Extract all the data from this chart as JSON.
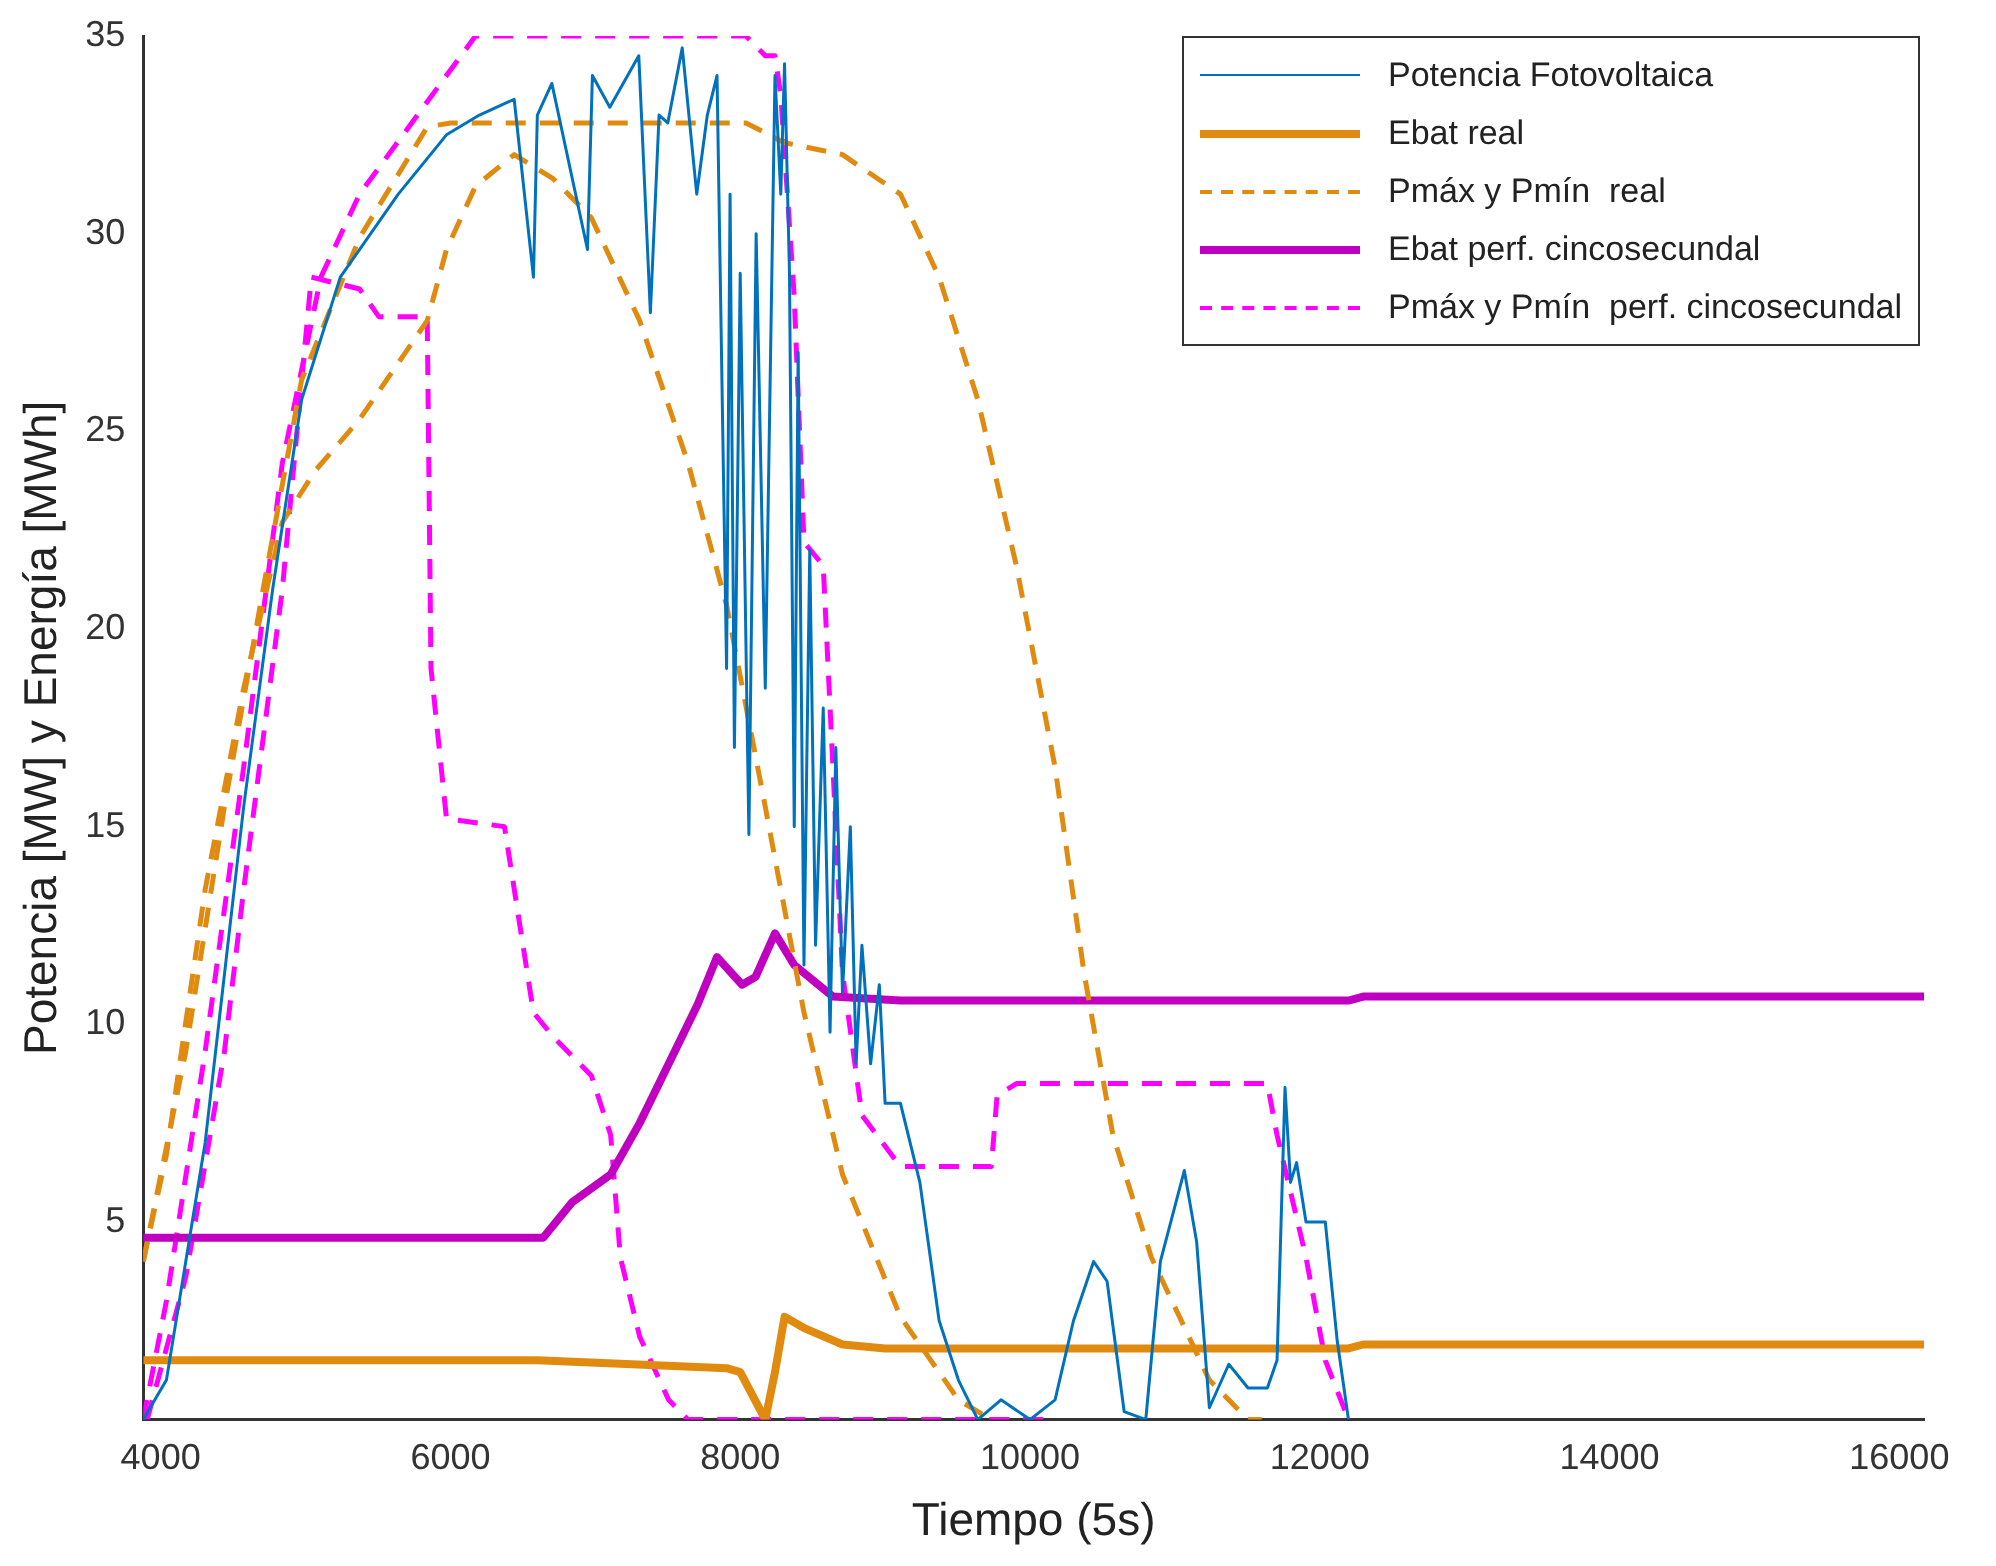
{
  "chart_data": {
    "type": "line",
    "xlabel": "Tiempo (5s)",
    "ylabel": "Potencia [MW] y Energía [MWh]",
    "xlim": [
      3880,
      16170
    ],
    "ylim": [
      0,
      35
    ],
    "xticks": [
      4000,
      6000,
      8000,
      10000,
      12000,
      14000,
      16000
    ],
    "yticks": [
      5,
      10,
      15,
      20,
      25,
      30,
      35
    ],
    "grid": false,
    "legend": "top right",
    "marker": "none",
    "series": [
      {
        "name": "Potencia Fotovoltaica",
        "color": "#0072bd",
        "line_style": "solid",
        "x": [
          3880,
          4040,
          4307,
          4573,
          4773,
          4973,
          5240,
          5640,
          5973,
          6200,
          6440,
          6573,
          6600,
          6700,
          6946,
          6980,
          7100,
          7300,
          7380,
          7440,
          7500,
          7600,
          7700,
          7773,
          7840,
          7906,
          7930,
          7960,
          8000,
          8060,
          8110,
          8173,
          8240,
          8280,
          8306,
          8340,
          8373,
          8400,
          8440,
          8480,
          8520,
          8573,
          8620,
          8660,
          8706,
          8760,
          8800,
          8840,
          8900,
          8960,
          9000,
          9106,
          9240,
          9373,
          9506,
          9640,
          9800,
          10000,
          10173,
          10300,
          10439,
          10532,
          10650,
          10799,
          10900,
          11065,
          11150,
          11238,
          11372,
          11505,
          11638,
          11705,
          11760,
          11798,
          11840,
          11905,
          12038,
          12120,
          12198
        ],
        "values": [
          0,
          1,
          7,
          15.5,
          21,
          25.8,
          28.9,
          31,
          32.5,
          33,
          33.4,
          28.9,
          33,
          33.8,
          29.6,
          34,
          33.2,
          34.5,
          28,
          33,
          32.8,
          34.7,
          31,
          33,
          34,
          19,
          31,
          17,
          29,
          14.8,
          30,
          18.5,
          34,
          31,
          34.3,
          29,
          15,
          27,
          11.5,
          22,
          12,
          18,
          9.8,
          17,
          10.8,
          15,
          9,
          12,
          9,
          11,
          8,
          8,
          6,
          2.5,
          1,
          0,
          0.5,
          0,
          0.5,
          2.5,
          4,
          3.5,
          0.2,
          0,
          4,
          6.3,
          4.5,
          0.3,
          1.4,
          0.8,
          0.8,
          1.5,
          8.4,
          6,
          6.5,
          5,
          5,
          2,
          0
        ]
      },
      {
        "name": "Ebat real",
        "color": "#e08a10",
        "line_style": "solid",
        "x": [
          3880,
          6600,
          7906,
          8000,
          8173,
          8240,
          8306,
          8450,
          8706,
          9000,
          12198,
          12300,
          16170
        ],
        "values": [
          1.5,
          1.5,
          1.3,
          1.2,
          0,
          1.2,
          2.6,
          2.3,
          1.9,
          1.8,
          1.8,
          1.9,
          1.9
        ]
      },
      {
        "name": "Pmáx y Pmín  real",
        "color": "#e08a10",
        "line_style": "dashed",
        "x": [
          3880,
          4173,
          4440,
          4707,
          4973,
          5373,
          5840,
          6000,
          7000,
          8040,
          8306,
          8706,
          9106,
          9373,
          9640,
          9906,
          10173,
          10373,
          10572,
          10838,
          11238,
          11505,
          11600
        ],
        "values": [
          4,
          9.3,
          15.5,
          21,
          26.3,
          29.9,
          32.7,
          32.8,
          32.8,
          32.8,
          32.3,
          32,
          31,
          28.9,
          25.8,
          21.6,
          16.5,
          11.3,
          7.2,
          4.1,
          1,
          0,
          0
        ]
      },
      {
        "color": "#e08a10",
        "line_style": "dashed",
        "x": [
          3880,
          4040,
          4307,
          4573,
          4840,
          5066,
          5373,
          5840,
          5973,
          6173,
          6440,
          6706,
          6973,
          7306,
          7640,
          7906,
          8173,
          8440,
          8706,
          9106,
          9506,
          9733
        ],
        "values": [
          4,
          6.7,
          13.4,
          18.5,
          22.7,
          24,
          25.3,
          27.8,
          29.6,
          31.2,
          32,
          31.4,
          30.4,
          27.8,
          24.2,
          20.6,
          15.5,
          10.3,
          6.2,
          2.6,
          0.5,
          0
        ]
      },
      {
        "name": "Ebat perf. cincosecundal",
        "color": "#c000c0",
        "line_style": "solid",
        "x": [
          3880,
          6640,
          6840,
          7106,
          7306,
          7440,
          7706,
          7840,
          8013,
          8106,
          8240,
          8373,
          8640,
          9106,
          12198,
          12300,
          16170
        ],
        "values": [
          4.6,
          4.6,
          5.5,
          6.2,
          7.5,
          8.5,
          10.5,
          11.7,
          11,
          11.2,
          12.3,
          11.5,
          10.7,
          10.6,
          10.6,
          10.7,
          10.7
        ]
      },
      {
        "name": "Pmáx y Pmín  perf. cincosecundal",
        "color": "#ff00ff",
        "line_style": "dashed",
        "x": [
          3880,
          4040,
          4307,
          4573,
          4840,
          5106,
          5373,
          5773,
          6173,
          8040,
          8173,
          8240,
          8280,
          8373,
          8440,
          8573,
          8640,
          8706,
          8840,
          9106,
          9733,
          9773,
          9906,
          11638,
          11705,
          11905,
          12038,
          12198
        ],
        "values": [
          0,
          3,
          9.3,
          16.5,
          24.2,
          28.9,
          31,
          33,
          35,
          35,
          34.5,
          34.5,
          33.5,
          28.4,
          22.2,
          21.6,
          16.5,
          11.3,
          7.7,
          6.4,
          6.4,
          8.2,
          8.5,
          8.5,
          7.2,
          4.1,
          1.5,
          0
        ]
      },
      {
        "color": "#ff00ff",
        "line_style": "dashed",
        "x": [
          3907,
          4173,
          4440,
          4573,
          4840,
          5040,
          5373,
          5506,
          5840,
          5866,
          5973,
          6373,
          6573,
          6706,
          6973,
          7106,
          7173,
          7306,
          7506,
          7640,
          10173
        ],
        "values": [
          0,
          3.6,
          9.3,
          13.4,
          21,
          28.9,
          28.6,
          27.9,
          27.9,
          19,
          15.2,
          15,
          10.3,
          9.7,
          8.7,
          7.2,
          4.1,
          2.1,
          0.5,
          0,
          0
        ]
      }
    ]
  }
}
